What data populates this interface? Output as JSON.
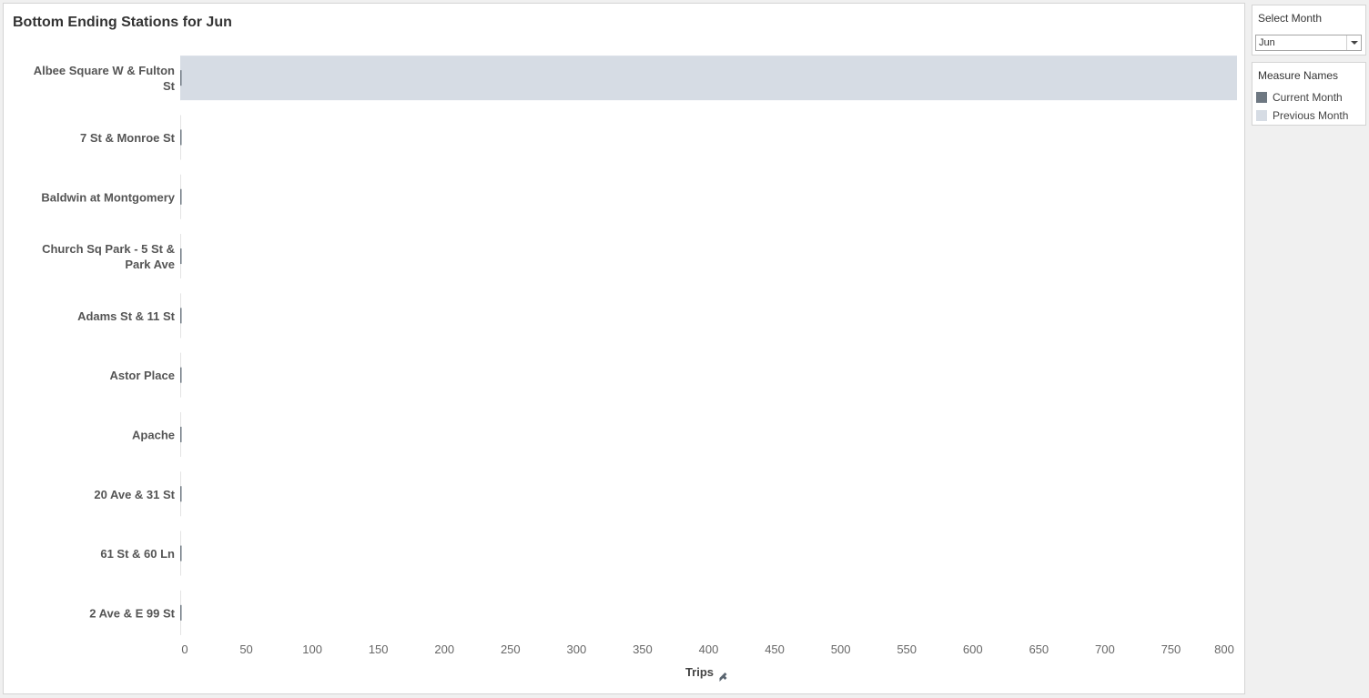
{
  "title": "Bottom Ending Stations for Jun",
  "filter": {
    "title": "Select Month",
    "selected": "Jun"
  },
  "legend": {
    "title": "Measure Names",
    "items": [
      {
        "label": "Current Month",
        "color": "#6e7882"
      },
      {
        "label": "Previous Month",
        "color": "#d6dce4"
      }
    ]
  },
  "chart_data": {
    "type": "bar",
    "orientation": "horizontal",
    "xlabel": "Trips",
    "xlim": [
      0,
      800
    ],
    "xticks": [
      0,
      50,
      100,
      150,
      200,
      250,
      300,
      350,
      400,
      450,
      500,
      550,
      600,
      650,
      700,
      750,
      800
    ],
    "categories": [
      "Albee Square W & Fulton St",
      "7 St & Monroe St",
      "Baldwin at Montgomery",
      "Church Sq Park - 5 St & Park Ave",
      "Adams St & 11 St",
      "Astor Place",
      "Apache",
      "20 Ave & 31 St",
      "61 St & 60 Ln",
      "2 Ave & E 99 St"
    ],
    "series": [
      {
        "name": "Current Month",
        "color": "#6e7882",
        "values": [
          1,
          1,
          1,
          1,
          1,
          1,
          1,
          1,
          1,
          1
        ]
      },
      {
        "name": "Previous Month",
        "color": "#d6dce4",
        "values": [
          800,
          0,
          0,
          0,
          0,
          0,
          0,
          0,
          0,
          0
        ]
      }
    ],
    "grid": false,
    "legend_position": "right"
  }
}
